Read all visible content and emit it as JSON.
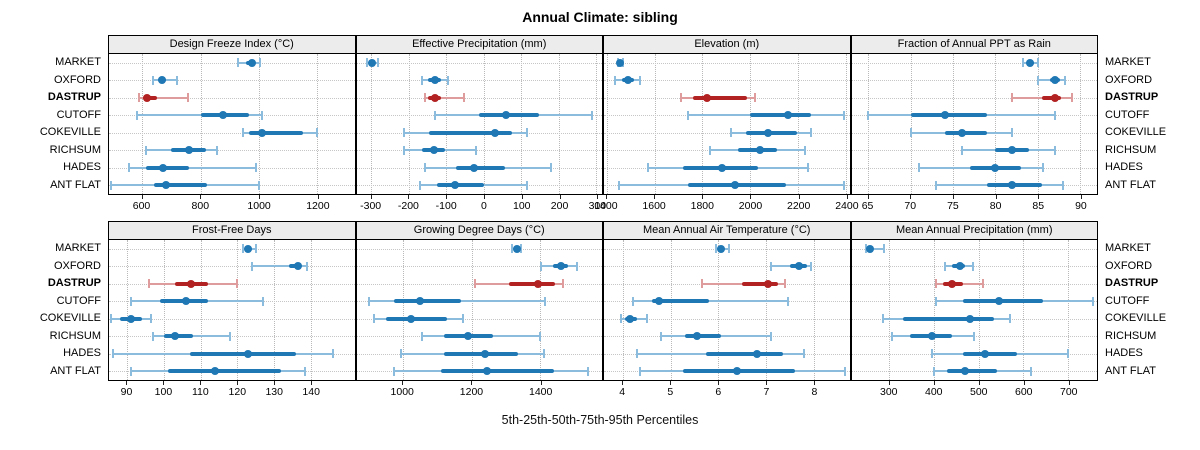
{
  "title": "Annual Climate: sibling",
  "caption": "5th-25th-50th-75th-95th Percentiles",
  "colors": {
    "primary": "#1F77B4",
    "primary_light": "#8BBCDE",
    "highlight": "#B22222",
    "highlight_light": "#DE9C9C",
    "strip_bg": "#ECECEC",
    "grid": "#BDBDBD",
    "border": "#000000"
  },
  "chart_data": {
    "type": "dotplot-percentiles",
    "title": "Annual Climate: sibling",
    "xlabel": "5th-25th-50th-75th-95th Percentiles",
    "percentile_labels": [
      "5th",
      "25th",
      "50th",
      "75th",
      "95th"
    ],
    "rows": [
      "MARKET",
      "OXFORD",
      "DASTRUP",
      "CUTOFF",
      "COKEVILLE",
      "RICHSUM",
      "HADES",
      "ANT FLAT"
    ],
    "highlighted_row": "DASTRUP",
    "legend_position": "none",
    "grid": "dotted",
    "panels": [
      {
        "title": "Design Freeze Index (°C)",
        "grid_row": 0,
        "xlim": [
          486,
          1328
        ],
        "ticks": [
          600,
          800,
          1000,
          1200
        ],
        "values": [
          [
            930,
            955,
            975,
            987,
            1005
          ],
          [
            638,
            655,
            667,
            681,
            720
          ],
          [
            590,
            602,
            617,
            652,
            756
          ],
          [
            582,
            800,
            876,
            966,
            1012
          ],
          [
            945,
            965,
            1012,
            1150,
            1200
          ],
          [
            612,
            700,
            760,
            820,
            856
          ],
          [
            556,
            612,
            670,
            762,
            990
          ],
          [
            492,
            640,
            682,
            822,
            1000
          ]
        ]
      },
      {
        "title": "Effective Precipitation (mm)",
        "grid_row": 0,
        "xlim": [
          -340,
          315
        ],
        "ticks": [
          -300,
          -200,
          -100,
          0,
          100,
          200,
          300
        ],
        "values": [
          [
            -312,
            -305,
            -298,
            -292,
            -283
          ],
          [
            -166,
            -150,
            -131,
            -114,
            -96
          ],
          [
            -156,
            -149,
            -131,
            -114,
            -54
          ],
          [
            -130,
            -14,
            60,
            146,
            288
          ],
          [
            -214,
            -146,
            30,
            76,
            116
          ],
          [
            -214,
            -164,
            -134,
            -104,
            -20
          ],
          [
            -158,
            -74,
            -26,
            56,
            180
          ],
          [
            -170,
            -124,
            -76,
            0,
            116
          ]
        ]
      },
      {
        "title": "Elevation (m)",
        "grid_row": 0,
        "xlim": [
          1388,
          2415
        ],
        "ticks": [
          1400,
          1600,
          1800,
          2000,
          2200,
          2400
        ],
        "values": [
          [
            1446,
            1450,
            1455,
            1460,
            1466
          ],
          [
            1436,
            1464,
            1490,
            1512,
            1540
          ],
          [
            1712,
            1760,
            1820,
            1988,
            2020
          ],
          [
            1740,
            2000,
            2158,
            2252,
            2390
          ],
          [
            1920,
            1984,
            2076,
            2196,
            2252
          ],
          [
            1830,
            1950,
            2040,
            2110,
            2230
          ],
          [
            1572,
            1720,
            1880,
            2032,
            2240
          ],
          [
            1452,
            1740,
            1938,
            2150,
            2392
          ]
        ]
      },
      {
        "title": "Fraction of Annual PPT as Rain",
        "grid_row": 0,
        "xlim": [
          63,
          92
        ],
        "ticks": [
          65,
          70,
          75,
          80,
          85,
          90
        ],
        "values": [
          [
            83.2,
            83.7,
            84.1,
            84.5,
            85
          ],
          [
            85,
            86.4,
            87,
            87.6,
            88.2
          ],
          [
            82,
            85.5,
            87,
            87.8,
            89.1
          ],
          [
            65,
            70,
            74,
            79,
            87
          ],
          [
            70,
            74,
            76,
            79,
            82
          ],
          [
            76,
            80,
            82,
            84,
            87
          ],
          [
            71,
            77,
            80,
            83,
            85.6
          ],
          [
            73,
            79,
            82,
            85.5,
            88
          ]
        ]
      },
      {
        "title": "Frost-Free Days",
        "grid_row": 1,
        "xlim": [
          85,
          152
        ],
        "ticks": [
          90,
          100,
          110,
          120,
          130,
          140
        ],
        "values": [
          [
            121.5,
            122.5,
            123,
            124,
            125
          ],
          [
            124,
            134,
            136.5,
            137.5,
            139
          ],
          [
            96,
            103,
            107.5,
            112,
            120
          ],
          [
            91,
            99,
            106,
            112,
            127
          ],
          [
            85.5,
            88,
            91,
            94,
            96.5
          ],
          [
            97,
            100,
            103,
            108,
            118
          ],
          [
            86,
            107,
            123,
            136,
            146
          ],
          [
            91,
            101,
            114,
            132,
            138.5
          ]
        ]
      },
      {
        "title": "Growing Degree Days (°C)",
        "grid_row": 1,
        "xlim": [
          865,
          1580
        ],
        "ticks": [
          1000,
          1200,
          1400
        ],
        "values": [
          [
            1318,
            1325,
            1331,
            1337,
            1345
          ],
          [
            1402,
            1436,
            1460,
            1482,
            1506
          ],
          [
            1210,
            1310,
            1395,
            1442,
            1465
          ],
          [
            900,
            975,
            1050,
            1170,
            1415
          ],
          [
            915,
            950,
            1025,
            1130,
            1175
          ],
          [
            1055,
            1120,
            1190,
            1262,
            1400
          ],
          [
            995,
            1120,
            1240,
            1335,
            1412
          ],
          [
            975,
            1110,
            1245,
            1440,
            1540
          ]
        ]
      },
      {
        "title": "Mean Annual Air Temperature (°C)",
        "grid_row": 1,
        "xlim": [
          3.6,
          8.75
        ],
        "ticks": [
          4,
          5,
          6,
          7,
          8
        ],
        "values": [
          [
            5.95,
            6,
            6.05,
            6.12,
            6.22
          ],
          [
            7.1,
            7.5,
            7.7,
            7.85,
            7.95
          ],
          [
            5.65,
            6.5,
            7.05,
            7.25,
            7.4
          ],
          [
            4.2,
            4.6,
            4.75,
            5.8,
            7.45
          ],
          [
            3.95,
            4.05,
            4.15,
            4.3,
            4.5
          ],
          [
            4.8,
            5.3,
            5.55,
            6.05,
            7.1
          ],
          [
            4.3,
            5.75,
            6.8,
            7.35,
            7.8
          ],
          [
            4.35,
            5.25,
            6.4,
            7.6,
            8.65
          ]
        ]
      },
      {
        "title": "Mean Annual Precipitation (mm)",
        "grid_row": 1,
        "xlim": [
          215,
          765
        ],
        "ticks": [
          300,
          400,
          500,
          600,
          700
        ],
        "values": [
          [
            248,
            252,
            257,
            263,
            287
          ],
          [
            425,
            440,
            457,
            470,
            487
          ],
          [
            405,
            420,
            440,
            465,
            510
          ],
          [
            405,
            465,
            545,
            645,
            757
          ],
          [
            285,
            330,
            480,
            535,
            570
          ],
          [
            305,
            345,
            395,
            440,
            490
          ],
          [
            395,
            465,
            515,
            585,
            700
          ],
          [
            400,
            430,
            470,
            540,
            617
          ]
        ]
      }
    ]
  }
}
